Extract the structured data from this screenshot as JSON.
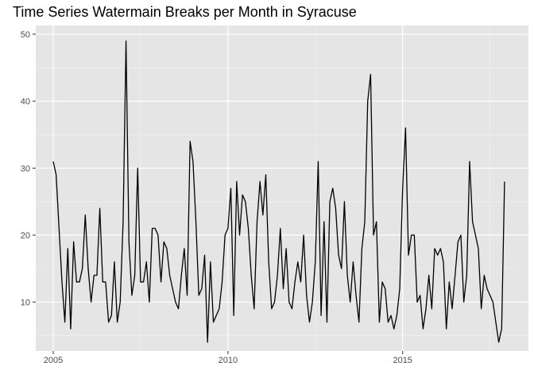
{
  "chart_data": {
    "type": "line",
    "title": "Time Series Watermain Breaks per Month in Syracuse",
    "xlabel": "",
    "ylabel": "",
    "xlim": [
      2004.5,
      2018.6
    ],
    "ylim": [
      2.7,
      51.3
    ],
    "x_ticks": [
      2005,
      2010,
      2015
    ],
    "y_ticks": [
      10,
      20,
      30,
      40,
      50
    ],
    "grid": true,
    "legend": "none",
    "colors": {
      "panel": "#e5e5e5",
      "grid_major": "#ffffff",
      "grid_minor": "#f2f2f2",
      "line": "#000000",
      "tick_text": "#4d4d4d",
      "tick_mark": "#333333"
    },
    "series": [
      {
        "start_year": 2005,
        "values": [
          31,
          29,
          21,
          13,
          7,
          18,
          6,
          19,
          13,
          13,
          15,
          23,
          15,
          10,
          14,
          14,
          24,
          13,
          13,
          7,
          8,
          16,
          7,
          10,
          22,
          49,
          19,
          11,
          14,
          30,
          13,
          13,
          16,
          10,
          21,
          21,
          20,
          13,
          19,
          18,
          14,
          12,
          10,
          9,
          14,
          18,
          11,
          34,
          31,
          22,
          11,
          12,
          17,
          4,
          16,
          7,
          8,
          9,
          13,
          20,
          21,
          27,
          8,
          28,
          20,
          26,
          25,
          21,
          14,
          9,
          22,
          28,
          23,
          29,
          16,
          9,
          10,
          14,
          21,
          12,
          18,
          10,
          9,
          13,
          16,
          13,
          20,
          11,
          7,
          10,
          16,
          31,
          8,
          22,
          7,
          25,
          27,
          24,
          17,
          15,
          25,
          14,
          10,
          16,
          11,
          7,
          18,
          22,
          40,
          44,
          20,
          22,
          7,
          13,
          12,
          7,
          8,
          6,
          8,
          12,
          27,
          36,
          17,
          20,
          20,
          10,
          11,
          6,
          9,
          14,
          9,
          18,
          17,
          18,
          16,
          6,
          13,
          9,
          14,
          19,
          20,
          10,
          14,
          31,
          22,
          20,
          18,
          9,
          14,
          12,
          11,
          10,
          7,
          4,
          6,
          28
        ]
      }
    ]
  }
}
